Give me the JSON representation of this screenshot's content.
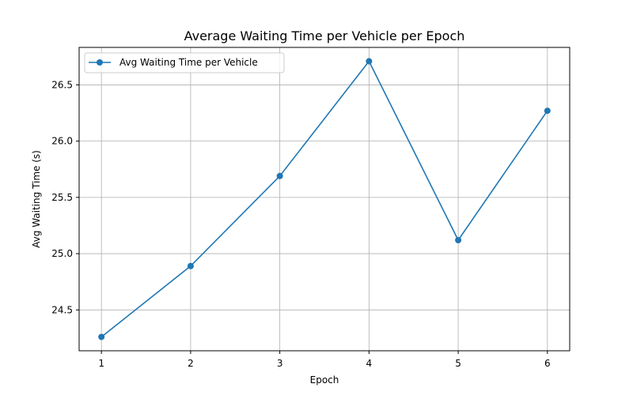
{
  "chart_data": {
    "type": "line",
    "title": "Average Waiting Time per Vehicle per Epoch",
    "xlabel": "Epoch",
    "ylabel": "Avg Waiting Time (s)",
    "x": [
      1,
      2,
      3,
      4,
      5,
      6
    ],
    "series": [
      {
        "name": "Avg Waiting Time per Vehicle",
        "values": [
          24.26,
          24.89,
          25.69,
          26.71,
          25.12,
          26.27
        ],
        "color": "#1f77b4"
      }
    ],
    "xticks": [
      "1",
      "2",
      "3",
      "4",
      "5",
      "6"
    ],
    "yticks": [
      "24.5",
      "25.0",
      "25.5",
      "26.0",
      "26.5"
    ],
    "xlim": [
      0.75,
      6.25
    ],
    "ylim": [
      24.137,
      26.833
    ],
    "grid": true,
    "legend_position": "top-left"
  }
}
